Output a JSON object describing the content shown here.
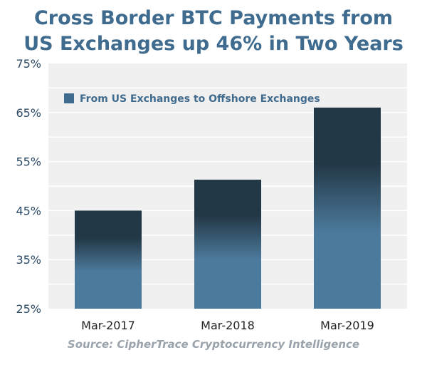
{
  "chart_data": {
    "type": "bar",
    "title": "Cross Border BTC Payments from US Exchanges up 46% in Two Years",
    "title_lines": [
      "Cross Border BTC Payments from",
      "US Exchanges up 46% in Two Years"
    ],
    "categories": [
      "Mar-2017",
      "Mar-2018",
      "Mar-2019"
    ],
    "series": [
      {
        "name": "From US Exchanges to Offshore Exchanges",
        "values": [
          45,
          51.3,
          66
        ]
      }
    ],
    "ylim": [
      25,
      75
    ],
    "yticks": [
      25,
      35,
      45,
      55,
      65,
      75
    ],
    "ytick_labels": [
      "25%",
      "35%",
      "45%",
      "55%",
      "65%",
      "75%"
    ],
    "grid": true,
    "legend_position": "top-left",
    "source": "Source: CipherTrace Cryptocurrency Intelligence",
    "colors": {
      "title": "#3f6b8f",
      "bar_top": "#233847",
      "bar_bottom": "#4c7a9c",
      "legend_swatch": "#3f6b8f",
      "plot_bg": "#f0f0f0",
      "grid": "#ffffff"
    }
  }
}
